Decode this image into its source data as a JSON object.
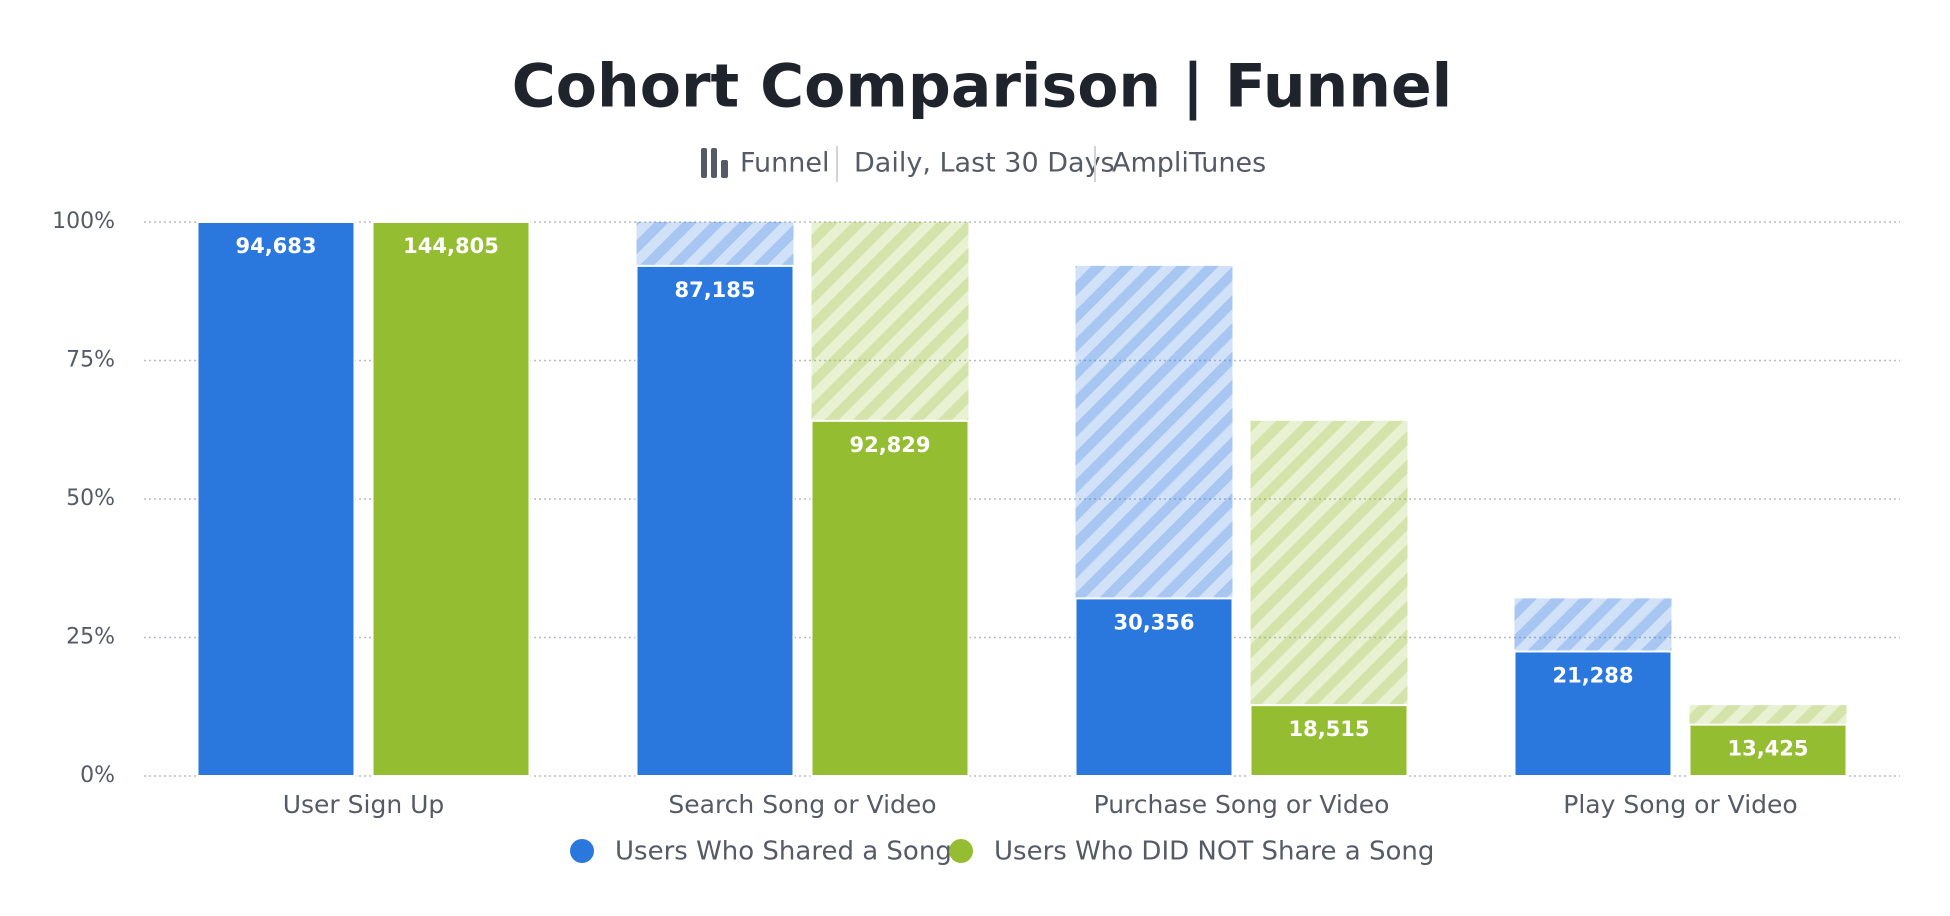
{
  "chart_data": {
    "type": "funnel",
    "title": "Cohort Comparison | Funnel",
    "subtitle": [
      "Funnel",
      "Daily, Last 30 Days",
      "AmpliTunes"
    ],
    "categories": [
      "User Sign Up",
      "Search Song or Video",
      "Purchase Song or Video",
      "Play Song or Video"
    ],
    "series": [
      {
        "name": "Users Who Shared a Song",
        "color": "#2a77de",
        "values": [
          100,
          92.08,
          32.06,
          22.48
        ],
        "count_labels": [
          "94,683",
          "87,185",
          "30,356",
          "21,288"
        ]
      },
      {
        "name": "Users Who DID NOT Share a Song",
        "color": "#95bd32",
        "values": [
          100,
          64.11,
          12.79,
          9.27
        ],
        "count_labels": [
          "144,805",
          "92,829",
          "18,515",
          "13,425"
        ]
      }
    ],
    "ylim": [
      0,
      100
    ],
    "yticks": [
      {
        "value": 0,
        "label": "0%"
      },
      {
        "value": 25,
        "label": "25%"
      },
      {
        "value": 50,
        "label": "50%"
      },
      {
        "value": 75,
        "label": "75%"
      },
      {
        "value": 100,
        "label": "100%"
      }
    ],
    "grid": true,
    "legend": "bottom"
  }
}
